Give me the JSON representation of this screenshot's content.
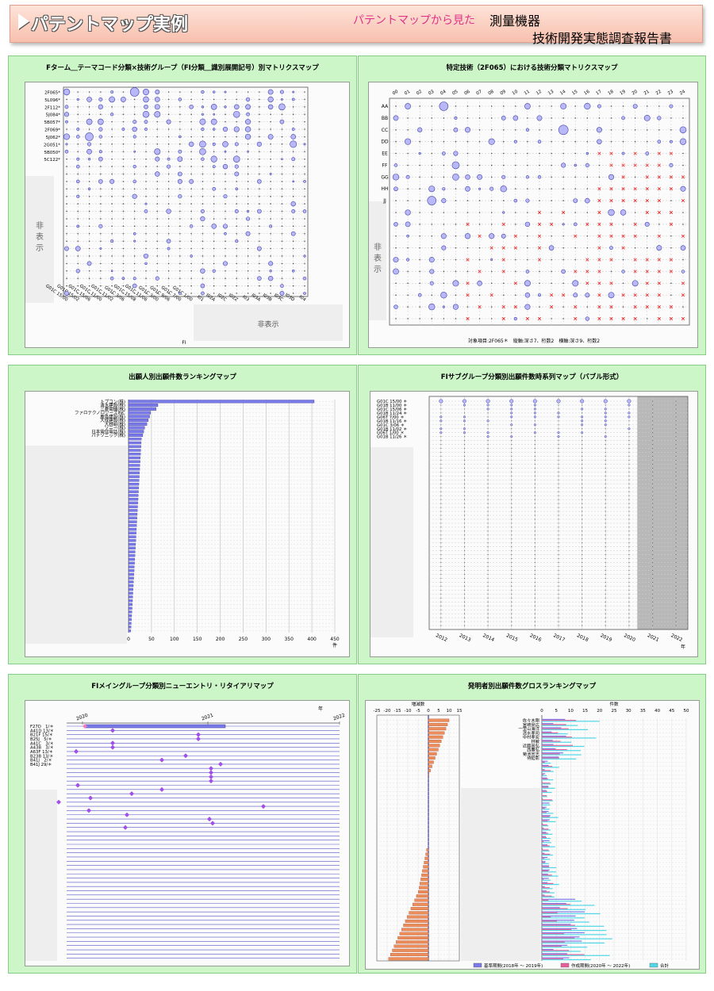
{
  "header": {
    "title": "パテントマップ実例",
    "subtitle": "パテントマップから見た",
    "right_line1": "測量機器",
    "right_line2": "技術開発実態調査報告書"
  },
  "colors": {
    "bubble": "#b8b8f8",
    "bubble_stroke": "#4444aa",
    "cross": "#ee2222",
    "bar_blue": "#7a7ae8",
    "bar_orange": "#ec8e5c",
    "bar_pink": "#e8609a",
    "bar_cyan": "#50d8e8",
    "diamond": "#a050e8",
    "panel_bg": "#ccf5c8"
  },
  "chart_data": [
    {
      "id": "p1",
      "title": "Fターム＿テーマコード分類×技術グループ（FI分類＿識別展開記号）別マトリクスマップ",
      "type": "scatter",
      "rows": [
        "2F065*",
        "5L096*",
        "2F112*",
        "5J084*",
        "5B057*",
        "2F069*",
        "5J062*",
        "2G051*",
        "5B050*",
        "5C122*"
      ],
      "cols": [
        "G01C 15/00",
        "G01C 15/02",
        "G01C 15/06",
        "G01C 11/00",
        "G01C 11/02",
        "G01C 3/06",
        "G01C 15/08",
        "G01C 11/06",
        "G01C 3/00",
        "G01C 9/06",
        "G01C 7/00",
        "G01C 1/00"
      ],
      "col_extra": [
        "I01",
        "I02A",
        "I02C",
        "I02Z",
        "I03",
        "I03A",
        "I03B",
        "I03C",
        "I03D",
        "I04"
      ],
      "hidden_label": "非表示",
      "right_hidden_label": "非表示",
      "x_axis_end": "FI"
    },
    {
      "id": "p2",
      "title": "特定技術（2F065）における技術分類マトリクスマップ",
      "type": "scatter",
      "cols": [
        "00",
        "01",
        "02",
        "03",
        "04",
        "05",
        "06",
        "07",
        "08",
        "09",
        "10",
        "11",
        "12",
        "13",
        "14",
        "15",
        "16",
        "17",
        "18",
        "19",
        "20",
        "21",
        "22",
        "23",
        "24"
      ],
      "rows": [
        "AA",
        "BB",
        "CC",
        "DD",
        "EE",
        "FF",
        "GG",
        "HH",
        "JJ"
      ],
      "hidden_label": "非表示",
      "footer": "対象項目:2F065＊　縦軸:深さ7、桁数2　横軸:深さ9、桁数2"
    },
    {
      "id": "p3",
      "title": "出願人別出願件数ランキングマップ",
      "type": "bar",
      "categories": [
        "トプコン(株)",
        "清水建設(株)",
        "三菱電機(株)",
        "ファロテクノロジーズINC",
        "鹿島建設(株)",
        "大成建設(株)",
        "大林組(株)",
        "ソニー(株)",
        "日本電信電話(株)",
        "パナソニック(株)"
      ],
      "values": [
        405,
        64,
        60,
        48,
        46,
        43,
        40,
        35,
        33,
        31
      ],
      "ticks": [
        "0",
        "50",
        "100",
        "150",
        "200",
        "250",
        "300",
        "350",
        "400",
        "450"
      ],
      "xlim": [
        0,
        450
      ],
      "unit": "件"
    },
    {
      "id": "p4",
      "title": "FIサブグループ分類別出願件数時系列マップ（バブル形式）",
      "type": "scatter",
      "rows": [
        "G01C 15/00",
        "G01B 11/00",
        "G01C 15/06",
        "G01B 11/24",
        "G06T 7/00",
        "G01B 11/16",
        "G01C 3/06",
        "G01B 11/02",
        "G06T 1/00",
        "G01B 11/26"
      ],
      "years": [
        "2012",
        "2013",
        "2014",
        "2015",
        "2016",
        "2017",
        "2018",
        "2019",
        "2020",
        "2021",
        "2022"
      ],
      "unit": "年"
    },
    {
      "id": "p5",
      "title": "FIメイングループ分類別ニューエントリ・リタイアリマップ",
      "type": "scatter",
      "rows": [
        "F27D　1/＊",
        "A41D 13/＊",
        "B21F 15/＊",
        "B25J　5/＊",
        "A41C　3/＊",
        "A43B　3/＊",
        "A63F 13/＊",
        "B23B 13/＊",
        "B41J　2/＊",
        "B41J 29/＊"
      ],
      "years": [
        "2020",
        "2021",
        "2022"
      ],
      "unit": "年"
    },
    {
      "id": "p6",
      "title": "発明者別出願件数グロスランキングマップ",
      "type": "bar",
      "left_axis_title": "増減数",
      "left_ticks": [
        "-25",
        "-20",
        "-15",
        "-10",
        "-5",
        "0",
        "5",
        "10",
        "15"
      ],
      "right_axis_title": "件数",
      "right_ticks": [
        "0",
        "5",
        "10",
        "15",
        "20",
        "25",
        "30",
        "35",
        "40",
        "45",
        "50"
      ],
      "categories": [
        "佐々木剛",
        "宮崎晃広",
        "一里山海洋",
        "清水孝司",
        "中村孝宏",
        "林敏",
        "近藤高弘",
        "西鷹弘",
        "菊池宣志",
        "待延彰"
      ],
      "legend": [
        "基準期間(2018年 ～ 2019年)",
        "作成期間(2020年 ～ 2022年)",
        "合計"
      ]
    }
  ]
}
